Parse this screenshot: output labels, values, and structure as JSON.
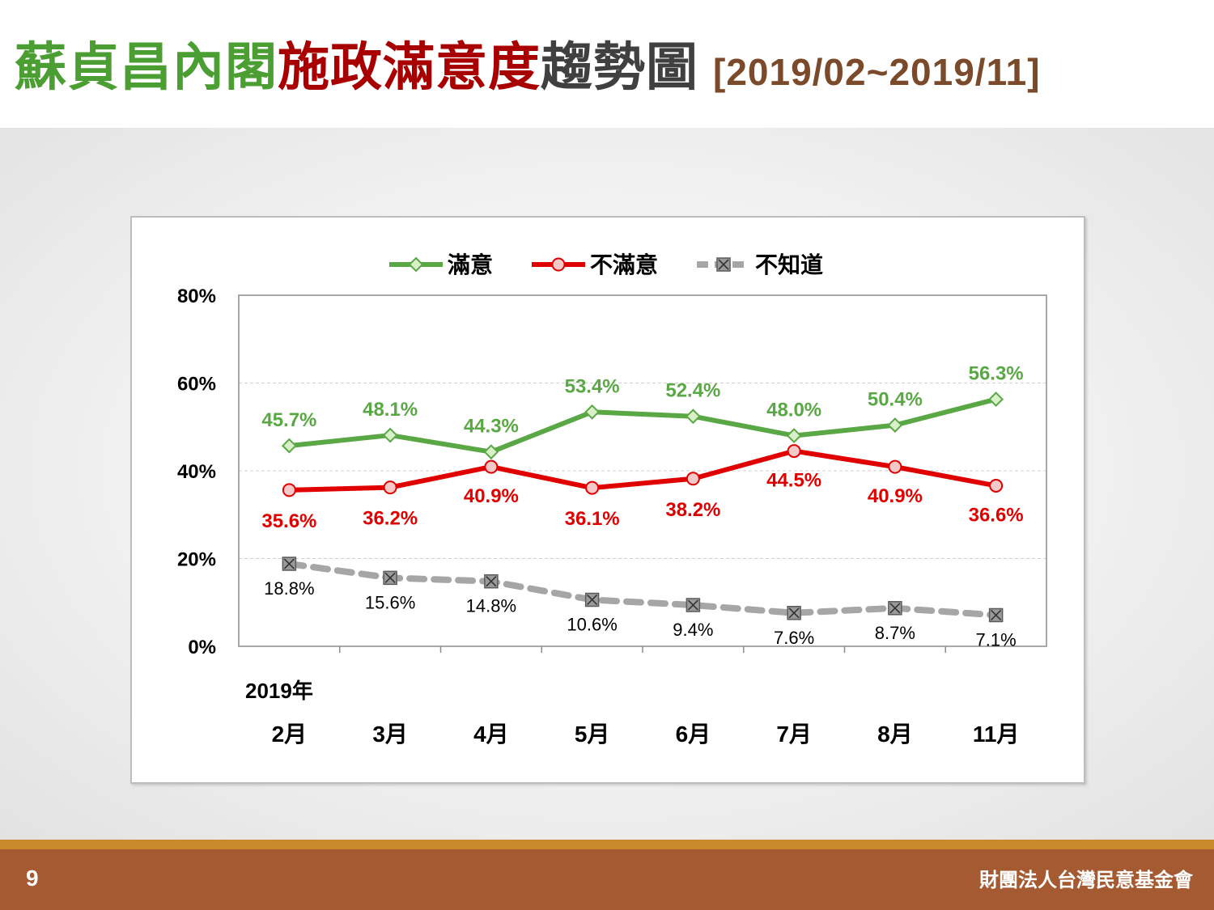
{
  "title": {
    "part1": "蘇貞昌內閣",
    "part2": "施政滿意度",
    "part3": "趨勢圖",
    "date_range": "[2019/02~2019/11]"
  },
  "footer": {
    "page_number": "9",
    "organization": "財團法人台灣民意基金會"
  },
  "colors": {
    "satisfied": "#5aa845",
    "dissatisfied": "#e00000",
    "unknown": "#a6a6a6",
    "title_green": "#4b9e32",
    "title_red": "#a80000",
    "title_brown": "#7a4a2a",
    "footer_bg": "#a55a32"
  },
  "chart_data": {
    "type": "line",
    "year_label": "2019年",
    "categories": [
      "2月",
      "3月",
      "4月",
      "5月",
      "6月",
      "7月",
      "8月",
      "11月"
    ],
    "ylim": [
      0,
      80
    ],
    "yticks": [
      "0%",
      "20%",
      "40%",
      "60%",
      "80%"
    ],
    "ytick_values": [
      0,
      20,
      40,
      60,
      80
    ],
    "grid": true,
    "legend_position": "top-center",
    "series": [
      {
        "name": "滿意",
        "values": [
          45.7,
          48.1,
          44.3,
          53.4,
          52.4,
          48.0,
          50.4,
          56.3
        ],
        "labels": [
          "45.7%",
          "48.1%",
          "44.3%",
          "53.4%",
          "52.4%",
          "48.0%",
          "50.4%",
          "56.3%"
        ],
        "color": "#5aa845",
        "marker": "diamond",
        "style": "solid"
      },
      {
        "name": "不滿意",
        "values": [
          35.6,
          36.2,
          40.9,
          36.1,
          38.2,
          44.5,
          40.9,
          36.6
        ],
        "labels": [
          "35.6%",
          "36.2%",
          "40.9%",
          "36.1%",
          "38.2%",
          "44.5%",
          "40.9%",
          "36.6%"
        ],
        "color": "#e00000",
        "marker": "circle",
        "style": "solid"
      },
      {
        "name": "不知道",
        "values": [
          18.8,
          15.6,
          14.8,
          10.6,
          9.4,
          7.6,
          8.7,
          7.1
        ],
        "labels": [
          "18.8%",
          "15.6%",
          "14.8%",
          "10.6%",
          "9.4%",
          "7.6%",
          "8.7%",
          "7.1%"
        ],
        "color": "#a6a6a6",
        "marker": "x-square",
        "style": "dashed"
      }
    ]
  }
}
